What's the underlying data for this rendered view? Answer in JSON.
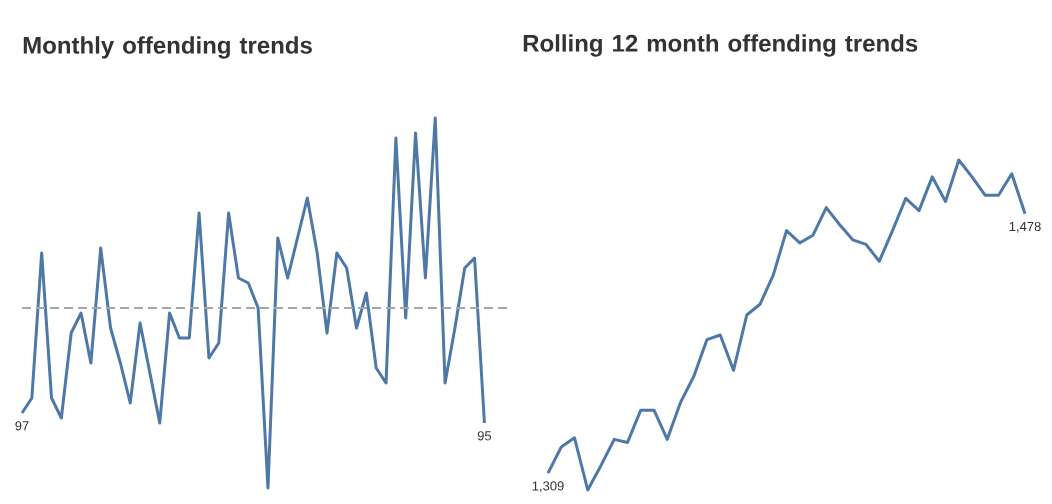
{
  "chart_data": [
    {
      "type": "line",
      "title": "Monthly offending trends",
      "color": "#4e79a7",
      "categories": [
        null,
        null,
        null,
        null,
        null,
        null,
        null,
        null,
        null,
        null,
        null,
        null,
        null,
        null,
        null,
        null,
        null,
        null,
        null,
        null,
        null,
        null,
        null,
        null,
        null,
        null,
        null,
        null,
        null,
        null,
        null,
        null,
        null,
        null,
        null,
        null,
        null,
        null,
        null,
        null,
        null,
        null,
        null,
        null,
        null,
        null,
        null,
        null
      ],
      "values": [
        97,
        100,
        129,
        100,
        96,
        113,
        117,
        107,
        130,
        114,
        107,
        99,
        115,
        105,
        95,
        117,
        112,
        112,
        137,
        108,
        111,
        137,
        124,
        123,
        118,
        82,
        132,
        124,
        132,
        140,
        129,
        113,
        129,
        126,
        114,
        121,
        106,
        103,
        152,
        116,
        153,
        124,
        156,
        103,
        114,
        126,
        128,
        95
      ],
      "value_labels": [
        "97",
        null,
        null,
        null,
        null,
        null,
        null,
        null,
        null,
        null,
        null,
        null,
        null,
        null,
        null,
        null,
        null,
        null,
        null,
        null,
        null,
        null,
        null,
        null,
        null,
        null,
        null,
        null,
        null,
        null,
        null,
        null,
        null,
        null,
        null,
        null,
        null,
        null,
        null,
        null,
        null,
        null,
        null,
        null,
        null,
        null,
        null,
        "95"
      ],
      "ref_lines": [
        {
          "axis": "y",
          "value": 118,
          "color": "#a6a6a6",
          "line_style": "dashed"
        }
      ]
    },
    {
      "type": "line",
      "title": "Rolling 12 month offending trends",
      "color": "#4e79a7",
      "categories": [
        null,
        null,
        null,
        null,
        null,
        null,
        null,
        null,
        null,
        null,
        null,
        null,
        null,
        null,
        null,
        null,
        null,
        null,
        null,
        null,
        null,
        null,
        null,
        null,
        null,
        null,
        null,
        null,
        null,
        null,
        null,
        null,
        null,
        null,
        null,
        null,
        null
      ],
      "values": [
        1309,
        1326,
        1332,
        1298,
        1314,
        1331,
        1329,
        1350,
        1350,
        1331,
        1355,
        1372,
        1396,
        1399,
        1376,
        1412,
        1419,
        1438,
        1467,
        1459,
        1464,
        1482,
        1471,
        1461,
        1458,
        1447,
        1467,
        1488,
        1480,
        1502,
        1486,
        1513,
        1502,
        1490,
        1490,
        1504,
        1478
      ],
      "value_labels": [
        "1,309",
        null,
        null,
        null,
        null,
        null,
        null,
        null,
        null,
        null,
        null,
        null,
        null,
        null,
        null,
        null,
        null,
        null,
        null,
        null,
        null,
        null,
        null,
        null,
        null,
        null,
        null,
        null,
        null,
        null,
        null,
        null,
        null,
        null,
        null,
        null,
        "1,478"
      ]
    }
  ]
}
